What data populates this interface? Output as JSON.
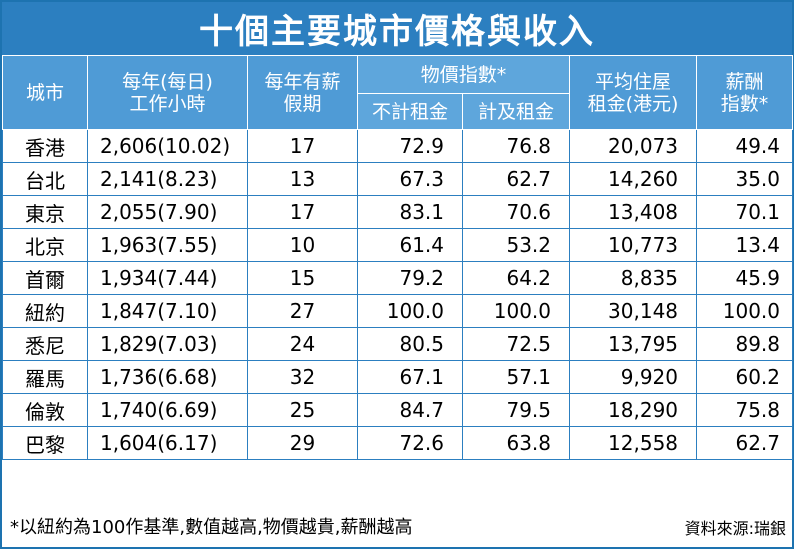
{
  "title": "十個主要城市價格與收入",
  "headers": {
    "city": "城市",
    "hours_line1": "每年(每日)",
    "hours_line2": "工作小時",
    "leave_line1": "每年有薪",
    "leave_line2": "假期",
    "price_index": "物價指數*",
    "excl_rent": "不計租金",
    "incl_rent": "計及租金",
    "rent_line1": "平均住屋",
    "rent_line2": "租金(港元)",
    "salary_line1": "薪酬",
    "salary_line2": "指數*"
  },
  "rows": [
    {
      "city": "香港",
      "hours": "2,606(10.02)",
      "leave": "17",
      "excl": "72.9",
      "incl": "76.8",
      "rent": "20,073",
      "salary": "49.4"
    },
    {
      "city": "台北",
      "hours": "2,141(8.23)",
      "leave": "13",
      "excl": "67.3",
      "incl": "62.7",
      "rent": "14,260",
      "salary": "35.0"
    },
    {
      "city": "東京",
      "hours": "2,055(7.90)",
      "leave": "17",
      "excl": "83.1",
      "incl": "70.6",
      "rent": "13,408",
      "salary": "70.1"
    },
    {
      "city": "北京",
      "hours": "1,963(7.55)",
      "leave": "10",
      "excl": "61.4",
      "incl": "53.2",
      "rent": "10,773",
      "salary": "13.4"
    },
    {
      "city": "首爾",
      "hours": "1,934(7.44)",
      "leave": "15",
      "excl": "79.2",
      "incl": "64.2",
      "rent": "8,835",
      "salary": "45.9"
    },
    {
      "city": "紐約",
      "hours": "1,847(7.10)",
      "leave": "27",
      "excl": "100.0",
      "incl": "100.0",
      "rent": "30,148",
      "salary": "100.0"
    },
    {
      "city": "悉尼",
      "hours": "1,829(7.03)",
      "leave": "24",
      "excl": "80.5",
      "incl": "72.5",
      "rent": "13,795",
      "salary": "89.8"
    },
    {
      "city": "羅馬",
      "hours": "1,736(6.68)",
      "leave": "32",
      "excl": "67.1",
      "incl": "57.1",
      "rent": "9,920",
      "salary": "60.2"
    },
    {
      "city": "倫敦",
      "hours": "1,740(6.69)",
      "leave": "25",
      "excl": "84.7",
      "incl": "79.5",
      "rent": "18,290",
      "salary": "75.8"
    },
    {
      "city": "巴黎",
      "hours": "1,604(6.17)",
      "leave": "29",
      "excl": "72.6",
      "incl": "63.8",
      "rent": "12,558",
      "salary": "62.7"
    }
  ],
  "footer": {
    "note": "*以紐約為100作基準,數值越高,物價越貴,薪酬越高",
    "source": "資料來源:瑞銀"
  },
  "colors": {
    "title_bg": "#2c7fc0",
    "header_bg": "#4f9bd6",
    "border": "#2c7fc0"
  },
  "chart_data": {
    "type": "table",
    "title": "十個主要城市價格與收入",
    "columns": [
      "城市",
      "每年(每日)工作小時",
      "每年有薪假期",
      "物價指數* 不計租金",
      "物價指數* 計及租金",
      "平均住屋租金(港元)",
      "薪酬指數*"
    ],
    "categories": [
      "香港",
      "台北",
      "東京",
      "北京",
      "首爾",
      "紐約",
      "悉尼",
      "羅馬",
      "倫敦",
      "巴黎"
    ],
    "series": [
      {
        "name": "每年工作小時",
        "values": [
          2606,
          2141,
          2055,
          1963,
          1934,
          1847,
          1829,
          1736,
          1740,
          1604
        ]
      },
      {
        "name": "每日工作小時",
        "values": [
          10.02,
          8.23,
          7.9,
          7.55,
          7.44,
          7.1,
          7.03,
          6.68,
          6.69,
          6.17
        ]
      },
      {
        "name": "每年有薪假期",
        "values": [
          17,
          13,
          17,
          10,
          15,
          27,
          24,
          32,
          25,
          29
        ]
      },
      {
        "name": "不計租金",
        "values": [
          72.9,
          67.3,
          83.1,
          61.4,
          79.2,
          100.0,
          80.5,
          67.1,
          84.7,
          72.6
        ]
      },
      {
        "name": "計及租金",
        "values": [
          76.8,
          62.7,
          70.6,
          53.2,
          64.2,
          100.0,
          72.5,
          57.1,
          79.5,
          63.8
        ]
      },
      {
        "name": "平均住屋租金(港元)",
        "values": [
          20073,
          14260,
          13408,
          10773,
          8835,
          30148,
          13795,
          9920,
          18290,
          12558
        ]
      },
      {
        "name": "薪酬指數*",
        "values": [
          49.4,
          35.0,
          70.1,
          13.4,
          45.9,
          100.0,
          89.8,
          60.2,
          75.8,
          62.7
        ]
      }
    ]
  }
}
